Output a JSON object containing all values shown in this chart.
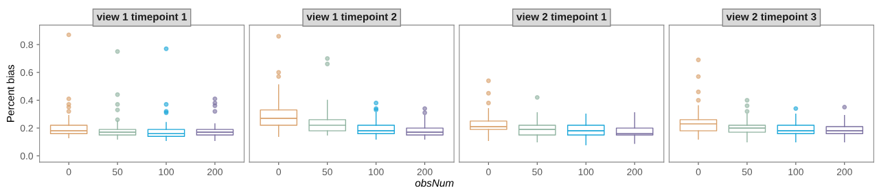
{
  "chart_data": [
    {
      "type": "box",
      "title": "view 1 timepoint 1",
      "ylabel": "Percent bias",
      "categories": [
        "0",
        "50",
        "100",
        "200"
      ],
      "colors": [
        "#d9a06a",
        "#8fb3a0",
        "#1aa6d8",
        "#7a6fa0"
      ],
      "ylim": [
        -0.045,
        0.94
      ],
      "yticks": [
        {
          "value": 0,
          "label": "0.0"
        },
        0.2,
        0.4,
        0.6,
        0.8
      ],
      "grid": false,
      "legend": false,
      "boxes": [
        {
          "low": 0.13,
          "q1": 0.16,
          "median": 0.18,
          "q3": 0.22,
          "high": 0.29,
          "outliers": [
            0.87,
            0.41,
            0.37,
            0.35,
            0.32
          ]
        },
        {
          "low": 0.12,
          "q1": 0.15,
          "median": 0.17,
          "q3": 0.19,
          "high": 0.25,
          "outliers": [
            0.75,
            0.44,
            0.37,
            0.33,
            0.26
          ]
        },
        {
          "low": 0.11,
          "q1": 0.14,
          "median": 0.16,
          "q3": 0.19,
          "high": 0.24,
          "outliers": [
            0.77,
            0.37,
            0.32,
            0.31
          ]
        },
        {
          "low": 0.11,
          "q1": 0.15,
          "median": 0.17,
          "q3": 0.19,
          "high": 0.23,
          "outliers": [
            0.41,
            0.38,
            0.36,
            0.32
          ]
        }
      ]
    },
    {
      "type": "box",
      "title": "view 1 timepoint 2",
      "xlabel": "obsNum",
      "categories": [
        "0",
        "50",
        "100",
        "200"
      ],
      "colors": [
        "#d9a06a",
        "#8fb3a0",
        "#1aa6d8",
        "#7a6fa0"
      ],
      "ylim": [
        -0.045,
        0.94
      ],
      "tick_labels": "x",
      "grid": false,
      "legend": false,
      "boxes": [
        {
          "low": 0.14,
          "q1": 0.22,
          "median": 0.27,
          "q3": 0.33,
          "high": 0.51,
          "outliers": [
            0.86,
            0.6,
            0.57
          ]
        },
        {
          "low": 0.15,
          "q1": 0.18,
          "median": 0.22,
          "q3": 0.26,
          "high": 0.4,
          "outliers": [
            0.7,
            0.66
          ]
        },
        {
          "low": 0.12,
          "q1": 0.16,
          "median": 0.18,
          "q3": 0.22,
          "high": 0.31,
          "outliers": [
            0.38,
            0.34,
            0.33
          ]
        },
        {
          "low": 0.12,
          "q1": 0.15,
          "median": 0.17,
          "q3": 0.2,
          "high": 0.29,
          "outliers": [
            0.34,
            0.31
          ]
        }
      ]
    },
    {
      "type": "box",
      "title": "view 2 timepoint 1",
      "categories": [
        "0",
        "50",
        "100",
        "200"
      ],
      "colors": [
        "#d9a06a",
        "#8fb3a0",
        "#1aa6d8",
        "#7a6fa0"
      ],
      "ylim": [
        -0.045,
        0.94
      ],
      "tick_labels": "x",
      "grid": false,
      "legend": false,
      "boxes": [
        {
          "low": 0.11,
          "q1": 0.19,
          "median": 0.21,
          "q3": 0.25,
          "high": 0.34,
          "outliers": [
            0.54,
            0.45,
            0.38
          ]
        },
        {
          "low": 0.1,
          "q1": 0.15,
          "median": 0.19,
          "q3": 0.22,
          "high": 0.31,
          "outliers": [
            0.42
          ]
        },
        {
          "low": 0.08,
          "q1": 0.15,
          "median": 0.18,
          "q3": 0.22,
          "high": 0.3
        },
        {
          "low": 0.09,
          "q1": 0.15,
          "median": 0.16,
          "q3": 0.2,
          "high": 0.31
        }
      ]
    },
    {
      "type": "box",
      "title": "view 2 timepoint 3",
      "categories": [
        "0",
        "50",
        "100",
        "200"
      ],
      "colors": [
        "#d9a06a",
        "#8fb3a0",
        "#1aa6d8",
        "#7a6fa0"
      ],
      "ylim": [
        -0.045,
        0.94
      ],
      "tick_labels": "x",
      "grid": false,
      "legend": false,
      "boxes": [
        {
          "low": 0.12,
          "q1": 0.18,
          "median": 0.23,
          "q3": 0.26,
          "high": 0.36,
          "outliers": [
            0.69,
            0.57,
            0.46,
            0.4
          ]
        },
        {
          "low": 0.1,
          "q1": 0.17,
          "median": 0.2,
          "q3": 0.22,
          "high": 0.3,
          "outliers": [
            0.4,
            0.36,
            0.32
          ]
        },
        {
          "low": 0.1,
          "q1": 0.16,
          "median": 0.18,
          "q3": 0.22,
          "high": 0.3,
          "outliers": [
            0.34
          ]
        },
        {
          "low": 0.1,
          "q1": 0.16,
          "median": 0.18,
          "q3": 0.21,
          "high": 0.29,
          "outliers": [
            0.35
          ]
        }
      ]
    }
  ]
}
